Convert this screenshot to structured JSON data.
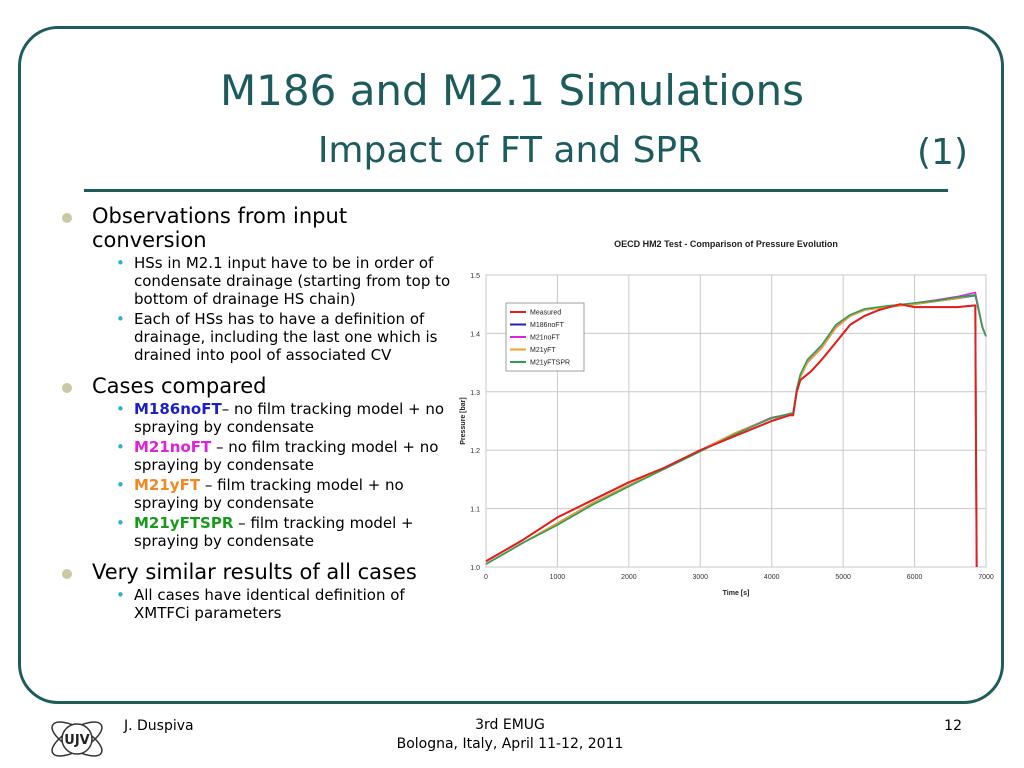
{
  "slide": {
    "title_line1": "M186 and M2.1 Simulations",
    "title_line2": "Impact of FT and SPR",
    "title_number": "(1)"
  },
  "bullets": {
    "obs": "Observations from input conversion",
    "obs_sub1": "HSs in M2.1 input have to be in order of condensate drainage (starting from top to bottom of drainage HS chain)",
    "obs_sub2": "Each of HSs has to have a definition of drainage, including the last one which is drained into pool of associated CV",
    "cases": "Cases compared",
    "case1_name": "M186noFT",
    "case1_desc": "– no film tracking model + no spraying by condensate",
    "case2_name": "M21noFT",
    "case2_desc": " – no film tracking model + no spraying by condensate",
    "case3_name": "M21yFT",
    "case3_desc": " – film tracking model + no spraying by condensate",
    "case4_name": "M21yFTSPR",
    "case4_desc": " – film tracking model + spraying by condensate",
    "similar": "Very similar results of all cases",
    "similar_sub": "All cases have identical definition of XMTFCi parameters"
  },
  "colors": {
    "title": "#1e5b5c",
    "case1": "#1f1fc8",
    "case2": "#e020e0",
    "case3": "#f08a20",
    "case4": "#1a9a1a"
  },
  "footer": {
    "author": "J. Duspiva",
    "event": "3rd EMUG",
    "location": "Bologna, Italy, April 11-12, 2011",
    "page": "12",
    "logo_text": "UJV"
  },
  "chart_data": {
    "type": "line",
    "title": "OECD HM2 Test - Comparison of Pressure Evolution",
    "xlabel": "Time [s]",
    "ylabel": "Pressure [bar]",
    "xlim": [
      0,
      7000
    ],
    "ylim": [
      1.0,
      1.5
    ],
    "xticks": [
      0,
      1000,
      2000,
      3000,
      4000,
      5000,
      6000,
      7000
    ],
    "yticks": [
      1.0,
      1.1,
      1.2,
      1.3,
      1.4,
      1.5
    ],
    "ytick_labels": [
      "1.0",
      "1.1",
      "1.2",
      "1.3",
      "1.4",
      "1.5"
    ],
    "grid": true,
    "legend_position": "top-left",
    "series": [
      {
        "name": "Measured",
        "color": "#e02020",
        "x": [
          0,
          500,
          1000,
          1500,
          2000,
          2500,
          3000,
          3500,
          4000,
          4250,
          4300,
          4350,
          4400,
          4450,
          4550,
          4700,
          4900,
          5100,
          5300,
          5500,
          5800,
          6000,
          6300,
          6600,
          6850,
          6860,
          6870
        ],
        "y": [
          1.01,
          1.045,
          1.085,
          1.115,
          1.145,
          1.17,
          1.2,
          1.225,
          1.25,
          1.26,
          1.26,
          1.3,
          1.32,
          1.325,
          1.335,
          1.355,
          1.385,
          1.415,
          1.43,
          1.44,
          1.45,
          1.445,
          1.445,
          1.445,
          1.448,
          1.2,
          1.0
        ]
      },
      {
        "name": "M186noFT",
        "color": "#1f1fc8",
        "x": [
          0,
          500,
          1000,
          1500,
          2000,
          2500,
          3000,
          3500,
          4000,
          4300,
          4350,
          4400,
          4500,
          4700,
          4900,
          5100,
          5300,
          5600,
          6000,
          6300,
          6600,
          6850,
          6950,
          7000
        ],
        "y": [
          1.005,
          1.04,
          1.075,
          1.11,
          1.14,
          1.17,
          1.2,
          1.23,
          1.255,
          1.262,
          1.3,
          1.325,
          1.35,
          1.375,
          1.41,
          1.43,
          1.44,
          1.445,
          1.45,
          1.455,
          1.46,
          1.465,
          1.41,
          1.395
        ]
      },
      {
        "name": "M21noFT",
        "color": "#e020e0",
        "x": [
          0,
          500,
          1000,
          1500,
          2000,
          2500,
          3000,
          3500,
          4000,
          4300,
          4350,
          4400,
          4500,
          4700,
          4900,
          5100,
          5300,
          5600,
          6000,
          6300,
          6600,
          6850,
          6950,
          7000
        ],
        "y": [
          1.005,
          1.04,
          1.075,
          1.11,
          1.14,
          1.17,
          1.2,
          1.23,
          1.256,
          1.263,
          1.3,
          1.326,
          1.351,
          1.376,
          1.411,
          1.431,
          1.441,
          1.446,
          1.452,
          1.457,
          1.463,
          1.47,
          1.412,
          1.395
        ]
      },
      {
        "name": "M21yFT",
        "color": "#f0a030",
        "x": [
          0,
          500,
          1000,
          1500,
          2000,
          2500,
          3000,
          3500,
          4000,
          4300,
          4350,
          4400,
          4500,
          4700,
          4900,
          5100,
          5300,
          5600,
          6000,
          6300,
          6600,
          6850,
          6950,
          7000
        ],
        "y": [
          1.005,
          1.04,
          1.075,
          1.11,
          1.14,
          1.17,
          1.2,
          1.23,
          1.255,
          1.262,
          1.3,
          1.325,
          1.35,
          1.375,
          1.41,
          1.43,
          1.44,
          1.445,
          1.45,
          1.455,
          1.46,
          1.466,
          1.41,
          1.395
        ]
      },
      {
        "name": "M21yFTSPR",
        "color": "#30a050",
        "x": [
          0,
          500,
          1000,
          1500,
          2000,
          2500,
          3000,
          3500,
          4000,
          4300,
          4350,
          4400,
          4500,
          4700,
          4900,
          5100,
          5300,
          5600,
          6000,
          6300,
          6600,
          6850,
          6950,
          7000
        ],
        "y": [
          1.005,
          1.04,
          1.072,
          1.107,
          1.138,
          1.168,
          1.198,
          1.228,
          1.255,
          1.264,
          1.305,
          1.33,
          1.355,
          1.38,
          1.415,
          1.432,
          1.442,
          1.447,
          1.452,
          1.456,
          1.462,
          1.466,
          1.41,
          1.395
        ]
      }
    ]
  }
}
